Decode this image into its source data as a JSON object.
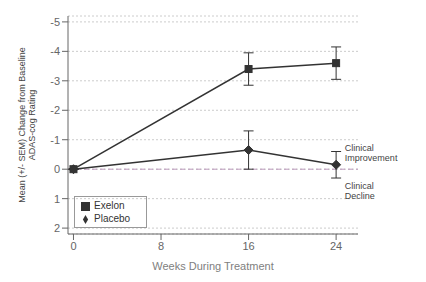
{
  "chart_data": {
    "type": "line",
    "xlabel": "Weeks During Treatment",
    "ylabel": "Mean (+/- SEM) Change from Baseline\nADAS-cog Rating",
    "x": [
      0,
      16,
      24
    ],
    "series": [
      {
        "name": "Exelon",
        "color": "#333333",
        "marker": "square",
        "line_style": "solid",
        "values": [
          0,
          -3.4,
          -3.6
        ],
        "yerr_lo": [
          0,
          0.55,
          0.55
        ],
        "yerr_hi": [
          0,
          0.55,
          0.55
        ]
      },
      {
        "name": "Placebo",
        "color": "#333333",
        "marker": "diamond",
        "line_style": "solid",
        "values": [
          0,
          -0.65,
          -0.15
        ],
        "yerr_lo": [
          0,
          0.65,
          0.45
        ],
        "yerr_hi": [
          0,
          0.65,
          0.45
        ]
      }
    ],
    "xlim": [
      -0.5,
      26
    ],
    "xticks": [
      0,
      8,
      16,
      24
    ],
    "ylim": [
      2.2,
      -5.2
    ],
    "yticks": [
      -5,
      -4,
      -3,
      -2,
      -1,
      0,
      1,
      2
    ],
    "grid": true,
    "legend": "lower left",
    "reference_lines": [
      {
        "y": 0,
        "color": "#bb99bb",
        "line_style": "dashed"
      }
    ],
    "annotations": [
      {
        "text": "Clinical\nImprovement",
        "x": 24.8,
        "y": -0.55
      },
      {
        "text": "Clinical\nDecline",
        "x": 24.8,
        "y": 0.75
      }
    ]
  }
}
